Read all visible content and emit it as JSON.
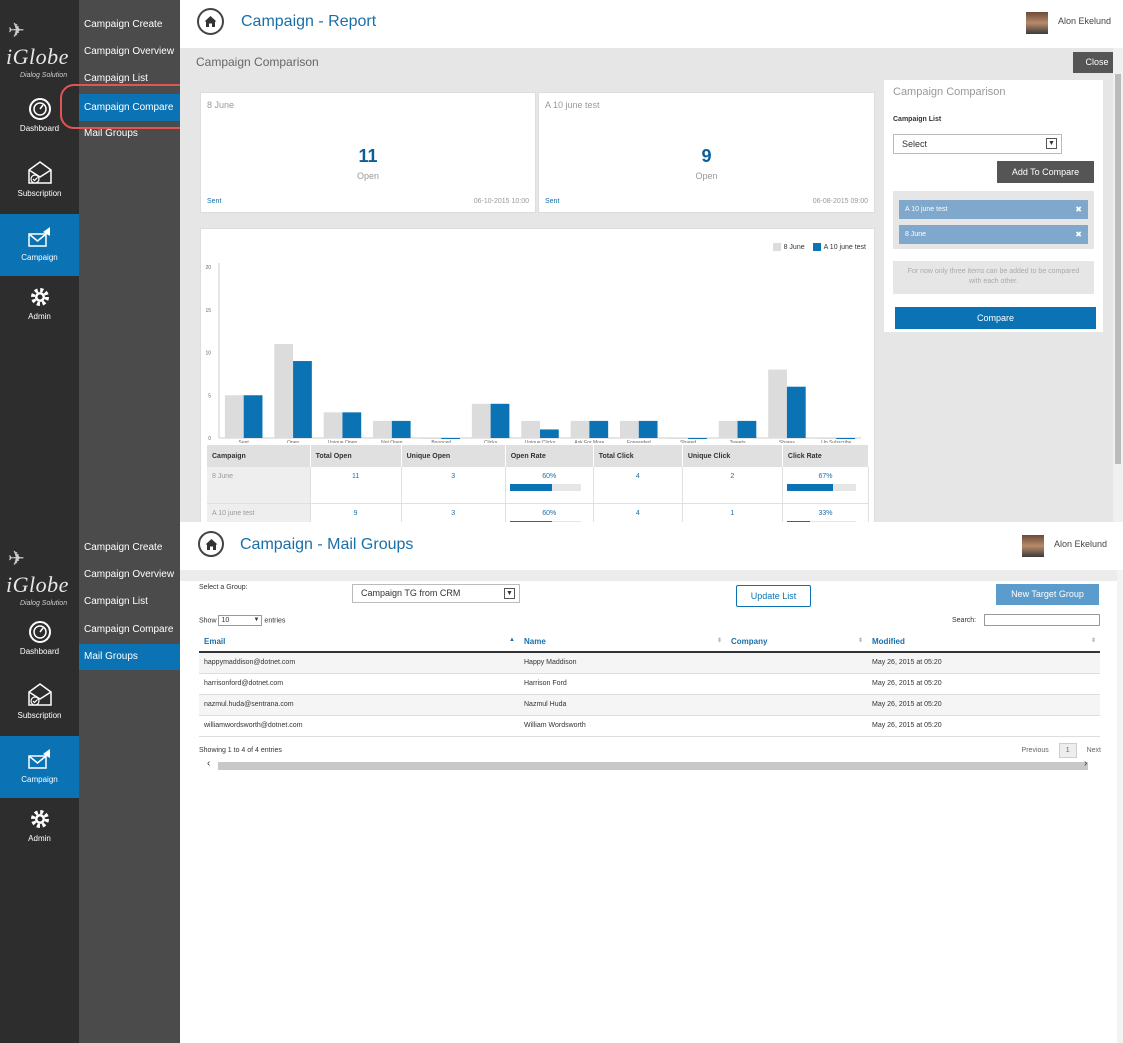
{
  "sidebar": {
    "logo_text": "iGlobe",
    "logo_tagline": "Dialog Solution",
    "items": [
      {
        "label": "Dashboard",
        "icon": "dashboard-icon"
      },
      {
        "label": "Subscription",
        "icon": "subscription-icon"
      },
      {
        "label": "Campaign",
        "icon": "campaign-icon"
      },
      {
        "label": "Admin",
        "icon": "gear-icon"
      }
    ]
  },
  "submenu": {
    "items": [
      "Campaign Create",
      "Campaign Overview",
      "Campaign List",
      "Campaign Compare",
      "Mail Groups"
    ]
  },
  "user": {
    "name": "Alon Ekelund"
  },
  "report": {
    "title": "Campaign - Report",
    "section_title": "Campaign Comparison",
    "close_label": "Close",
    "cards": [
      {
        "name": "8 June",
        "value": "11",
        "metric": "Open",
        "status": "Sent",
        "date": "06-10-2015 10:00"
      },
      {
        "name": "A 10 june test",
        "value": "9",
        "metric": "Open",
        "status": "Sent",
        "date": "06-08-2015 09:00"
      }
    ],
    "panel": {
      "title": "Campaign Comparison",
      "list_label": "Campaign List",
      "select_value": "Select",
      "add_label": "Add To Compare",
      "items": [
        "A 10 june test",
        "8 June"
      ],
      "remove_icon": "close-icon",
      "note": "For now only three items can be added to be compared with each other.",
      "compare_label": "Compare"
    },
    "table": {
      "headers": [
        "Campaign",
        "Total Open",
        "Unique Open",
        "Open Rate",
        "Total Click",
        "Unique Click",
        "Click Rate"
      ],
      "rows": [
        {
          "campaign": "8 June",
          "total_open": "11",
          "unique_open": "3",
          "open_rate": "60%",
          "open_rate_fill": 0.6,
          "total_click": "4",
          "unique_click": "2",
          "click_rate": "67%",
          "click_rate_fill": 0.67
        },
        {
          "campaign": "A 10 june test",
          "total_open": "9",
          "unique_open": "3",
          "open_rate": "60%",
          "open_rate_fill": 0.6,
          "total_click": "4",
          "unique_click": "1",
          "click_rate": "33%",
          "click_rate_fill": 0.33
        }
      ]
    }
  },
  "chart_data": {
    "type": "bar",
    "categories": [
      "Sent",
      "Open",
      "Unique Open",
      "Not Open",
      "Bounced",
      "Clicks",
      "Unique Clicks",
      "Ask For More",
      "Forwarded",
      "Shared",
      "Tweets",
      "Shares",
      "Un Subscribe"
    ],
    "series": [
      {
        "name": "8 June",
        "color": "#dcdcdc",
        "values": [
          5,
          11,
          3,
          2,
          0,
          4,
          2,
          2,
          2,
          0,
          2,
          8,
          0
        ]
      },
      {
        "name": "A 10 june test",
        "color": "#0b73b3",
        "values": [
          5,
          9,
          3,
          2,
          0,
          4,
          1,
          2,
          2,
          0,
          2,
          6,
          0
        ]
      }
    ],
    "yticks": [
      "0",
      "5",
      "10",
      "15",
      "20"
    ],
    "ylim": [
      0,
      20
    ],
    "legend": "top-right"
  },
  "mailgroups": {
    "title": "Campaign - Mail Groups",
    "select_group_label": "Select a Group:",
    "group_value": "Campaign TG from CRM",
    "update_label": "Update List",
    "new_label": "New Target Group",
    "show_label": "Show",
    "entries_value": "10",
    "entries_label": "entries",
    "search_label": "Search:",
    "headers": [
      "Email",
      "Name",
      "Company",
      "Modified"
    ],
    "rows": [
      {
        "email": "happymaddison@dotnet.com",
        "name": "Happy Maddison",
        "company": "",
        "modified": "May 26, 2015 at 05:20"
      },
      {
        "email": "harrisonford@dotnet.com",
        "name": "Harrison Ford",
        "company": "",
        "modified": "May 26, 2015 at 05:20"
      },
      {
        "email": "nazmul.huda@sentrana.com",
        "name": "Nazmul Huda",
        "company": "",
        "modified": "May 26, 2015 at 05:20"
      },
      {
        "email": "williamwordsworth@dotnet.com",
        "name": "William Wordsworth",
        "company": "",
        "modified": "May 26, 2015 at 05:20"
      }
    ],
    "showing": "Showing 1 to 4 of 4 entries",
    "pager": {
      "prev": "Previous",
      "page": "1",
      "next": "Next"
    }
  }
}
